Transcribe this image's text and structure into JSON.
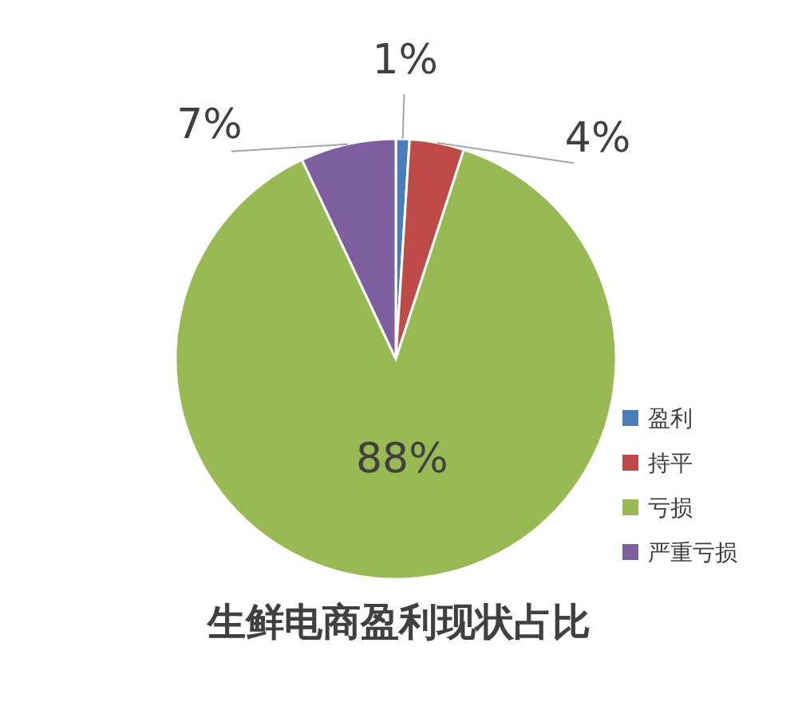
{
  "chart_data": {
    "type": "pie",
    "title": "生鲜电商盈利现状占比",
    "categories": [
      "盈利",
      "持平",
      "亏损",
      "严重亏损"
    ],
    "values": [
      1,
      4,
      88,
      7
    ],
    "colors": [
      "#4a7ebb",
      "#be4b48",
      "#98b954",
      "#7d5fa0"
    ],
    "value_labels": [
      "1%",
      "4%",
      "88%",
      "7%"
    ],
    "legend": "right"
  }
}
